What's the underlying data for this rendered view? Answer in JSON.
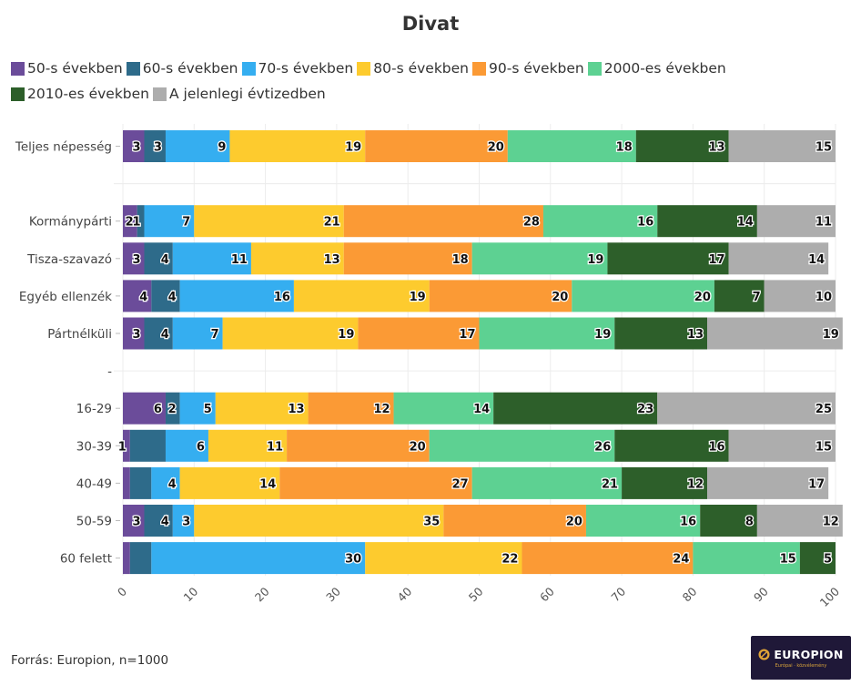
{
  "chart_data": {
    "type": "bar",
    "orientation": "horizontal",
    "stacked": true,
    "title": "Divat",
    "xlim": [
      0,
      100
    ],
    "xticks": [
      0,
      10,
      20,
      30,
      40,
      50,
      60,
      70,
      80,
      90,
      100
    ],
    "grid": true,
    "legend_position": "top-left",
    "categories": [
      "Teljes népesség",
      "",
      "Kormánypárti",
      "Tisza-szavazó",
      "Egyéb ellenzék",
      "Pártnélküli",
      "-",
      "16-29",
      "30-39",
      "40-49",
      "50-59",
      "60 felett"
    ],
    "series": [
      {
        "name": "50-s években",
        "color": "#6b4c9a",
        "values": [
          3,
          null,
          2,
          3,
          4,
          3,
          null,
          6,
          1,
          1,
          3,
          1
        ]
      },
      {
        "name": "60-s években",
        "color": "#2e6b8a",
        "values": [
          3,
          null,
          1,
          4,
          4,
          4,
          null,
          2,
          5,
          3,
          4,
          3
        ]
      },
      {
        "name": "70-s években",
        "color": "#35aef0",
        "values": [
          9,
          null,
          7,
          11,
          16,
          7,
          null,
          5,
          6,
          4,
          3,
          30
        ]
      },
      {
        "name": "80-s években",
        "color": "#fdcb2e",
        "values": [
          19,
          null,
          21,
          13,
          19,
          19,
          null,
          13,
          11,
          14,
          35,
          22
        ]
      },
      {
        "name": "90-s években",
        "color": "#fb9a35",
        "values": [
          20,
          null,
          28,
          18,
          20,
          17,
          null,
          12,
          20,
          27,
          20,
          24
        ]
      },
      {
        "name": "2000-es években",
        "color": "#5dd192",
        "values": [
          18,
          null,
          16,
          19,
          20,
          19,
          null,
          14,
          26,
          21,
          16,
          15
        ]
      },
      {
        "name": "2010-es években",
        "color": "#2d5f2a",
        "values": [
          13,
          null,
          14,
          17,
          7,
          13,
          null,
          23,
          16,
          12,
          8,
          5
        ]
      },
      {
        "name": "A jelenlegi évtizedben",
        "color": "#adadad",
        "values": [
          15,
          null,
          11,
          14,
          10,
          19,
          null,
          25,
          15,
          17,
          12,
          null
        ]
      }
    ],
    "hidden_labels": [
      [
        1,
        8
      ],
      [
        1,
        9
      ],
      [
        1,
        11
      ],
      [
        0,
        9
      ],
      [
        0,
        11
      ]
    ]
  },
  "source": "Forrás: Europion, n=1000",
  "logo": {
    "text": "EUROPION",
    "tagline": "Európai · közvélemény"
  }
}
